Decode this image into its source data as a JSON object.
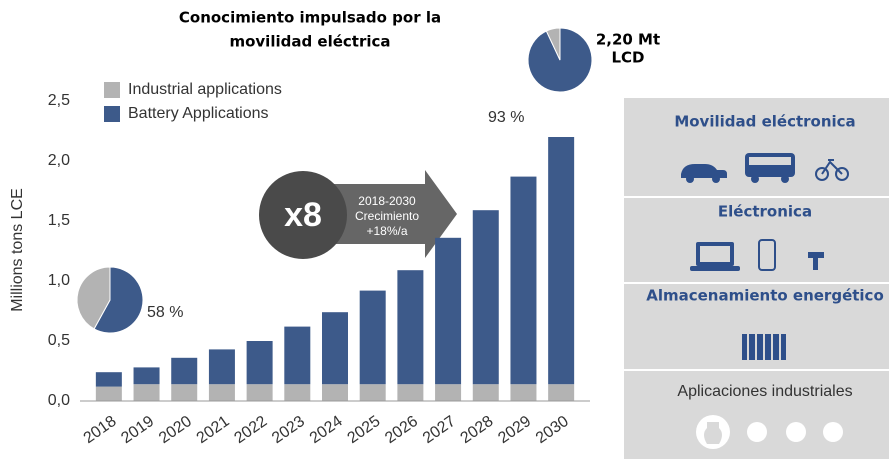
{
  "chart_data": {
    "type": "stacked_bar",
    "title": [
      "Conocimiento impulsado por la",
      "movilidad eléctrica"
    ],
    "y_label": "Millions tons LCE",
    "categories": [
      "2018",
      "2019",
      "2020",
      "2021",
      "2022",
      "2023",
      "2024",
      "2025",
      "2026",
      "2027",
      "2028",
      "2029",
      "2030"
    ],
    "series": [
      {
        "name": "Industrial applications",
        "color": "#b3b3b3",
        "values": [
          0.12,
          0.14,
          0.14,
          0.14,
          0.14,
          0.14,
          0.14,
          0.14,
          0.14,
          0.14,
          0.14,
          0.14,
          0.14
        ]
      },
      {
        "name": "Battery Applications",
        "color": "#3d5a8a",
        "values": [
          0.12,
          0.14,
          0.22,
          0.29,
          0.36,
          0.48,
          0.6,
          0.78,
          0.95,
          1.22,
          1.45,
          1.73,
          2.06
        ]
      }
    ],
    "ylim": [
      0,
      2.5
    ],
    "yticks": [
      {
        "value": 0,
        "label": "0,0"
      },
      {
        "value": 0.5,
        "label": "0,5"
      },
      {
        "value": 1,
        "label": "1,0"
      },
      {
        "value": 1.5,
        "label": "1,5"
      },
      {
        "value": 2,
        "label": "2,0"
      },
      {
        "value": 2.5,
        "label": "2,5"
      }
    ],
    "pies": [
      {
        "value": 58,
        "label": "58 %"
      },
      {
        "value": 93,
        "label": "93 %"
      }
    ],
    "total_note": [
      "2,20 Mt",
      "LCD"
    ],
    "growth": {
      "factor": "x8",
      "lines": [
        "2018-2030",
        "Crecimiento",
        "+18%/a"
      ]
    }
  },
  "panel": {
    "sections": [
      "Movilidad eléctronica",
      "Eléctronica",
      "Almacenamiento energético",
      "Aplicaciones industriales"
    ]
  }
}
